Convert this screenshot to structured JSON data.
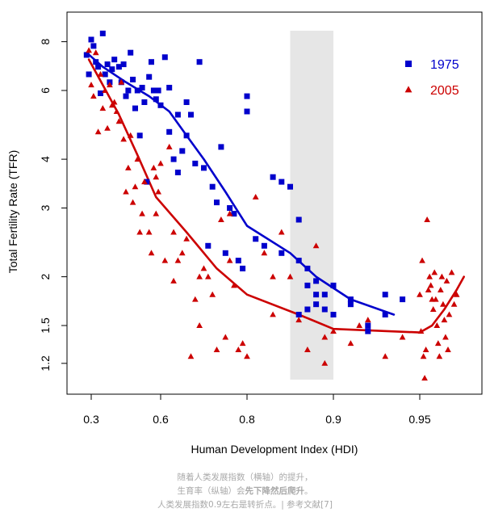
{
  "chart_data": {
    "type": "scatter",
    "xlabel": "Human Development Index (HDI)",
    "ylabel": "Total Fertility Rate (TFR)",
    "x_ticks": [
      {
        "value": 0.3,
        "label": "0.3"
      },
      {
        "value": 0.6,
        "label": "0.6"
      },
      {
        "value": 0.8,
        "label": "0.8"
      },
      {
        "value": 0.9,
        "label": "0.9"
      },
      {
        "value": 0.95,
        "label": "0.95"
      }
    ],
    "y_ticks": [
      {
        "value": 1.2,
        "label": "1.2"
      },
      {
        "value": 1.5,
        "label": "1.5"
      },
      {
        "value": 2,
        "label": "2"
      },
      {
        "value": 3,
        "label": "3"
      },
      {
        "value": 4,
        "label": "4"
      },
      {
        "value": 6,
        "label": "6"
      },
      {
        "value": 8,
        "label": "8"
      }
    ],
    "ylog": true,
    "ylim": [
      1.0,
      8.6
    ],
    "shaded_region": {
      "x0": 0.85,
      "x1": 0.9
    },
    "legend_position": "top-right",
    "series": [
      {
        "name": "1975",
        "marker": "square",
        "color": "#0000cc",
        "points": [
          [
            0.28,
            7.4
          ],
          [
            0.29,
            6.6
          ],
          [
            0.3,
            8.1
          ],
          [
            0.31,
            7.8
          ],
          [
            0.32,
            7.1
          ],
          [
            0.33,
            6.9
          ],
          [
            0.34,
            5.9
          ],
          [
            0.35,
            8.4
          ],
          [
            0.36,
            6.6
          ],
          [
            0.37,
            7.0
          ],
          [
            0.38,
            6.3
          ],
          [
            0.39,
            6.8
          ],
          [
            0.4,
            7.2
          ],
          [
            0.42,
            6.9
          ],
          [
            0.43,
            6.3
          ],
          [
            0.44,
            7.0
          ],
          [
            0.45,
            5.8
          ],
          [
            0.46,
            6.0
          ],
          [
            0.47,
            7.5
          ],
          [
            0.48,
            6.4
          ],
          [
            0.49,
            5.4
          ],
          [
            0.5,
            6.0
          ],
          [
            0.51,
            4.6
          ],
          [
            0.52,
            6.1
          ],
          [
            0.53,
            5.6
          ],
          [
            0.54,
            3.5
          ],
          [
            0.55,
            6.5
          ],
          [
            0.56,
            7.1
          ],
          [
            0.57,
            6.0
          ],
          [
            0.58,
            5.7
          ],
          [
            0.59,
            6.0
          ],
          [
            0.6,
            5.5
          ],
          [
            0.61,
            7.3
          ],
          [
            0.62,
            4.7
          ],
          [
            0.62,
            6.1
          ],
          [
            0.63,
            4.0
          ],
          [
            0.64,
            3.7
          ],
          [
            0.64,
            5.2
          ],
          [
            0.65,
            4.2
          ],
          [
            0.66,
            5.6
          ],
          [
            0.66,
            4.6
          ],
          [
            0.67,
            5.2
          ],
          [
            0.68,
            3.9
          ],
          [
            0.69,
            7.1
          ],
          [
            0.7,
            3.8
          ],
          [
            0.71,
            2.4
          ],
          [
            0.72,
            3.4
          ],
          [
            0.73,
            3.1
          ],
          [
            0.74,
            4.3
          ],
          [
            0.75,
            2.3
          ],
          [
            0.76,
            3.0
          ],
          [
            0.77,
            2.9
          ],
          [
            0.78,
            2.2
          ],
          [
            0.79,
            2.1
          ],
          [
            0.8,
            5.3
          ],
          [
            0.8,
            5.8
          ],
          [
            0.81,
            2.5
          ],
          [
            0.82,
            2.4
          ],
          [
            0.83,
            3.6
          ],
          [
            0.84,
            2.3
          ],
          [
            0.84,
            3.5
          ],
          [
            0.85,
            3.4
          ],
          [
            0.86,
            2.8
          ],
          [
            0.86,
            2.2
          ],
          [
            0.87,
            2.1
          ],
          [
            0.87,
            1.9
          ],
          [
            0.88,
            1.8
          ],
          [
            0.88,
            1.7
          ],
          [
            0.89,
            1.65
          ],
          [
            0.89,
            1.8
          ],
          [
            0.9,
            1.6
          ],
          [
            0.9,
            1.9
          ],
          [
            0.91,
            1.7
          ],
          [
            0.91,
            1.75
          ],
          [
            0.92,
            1.5
          ],
          [
            0.92,
            1.45
          ],
          [
            0.93,
            1.6
          ],
          [
            0.93,
            1.8
          ],
          [
            0.94,
            1.75
          ],
          [
            0.86,
            1.6
          ],
          [
            0.87,
            1.65
          ],
          [
            0.88,
            1.95
          ]
        ],
        "trend": [
          [
            0.28,
            7.5
          ],
          [
            0.35,
            6.9
          ],
          [
            0.45,
            6.3
          ],
          [
            0.55,
            5.8
          ],
          [
            0.62,
            5.3
          ],
          [
            0.66,
            4.6
          ],
          [
            0.7,
            4.0
          ],
          [
            0.75,
            3.3
          ],
          [
            0.8,
            2.7
          ],
          [
            0.85,
            2.3
          ],
          [
            0.88,
            2.0
          ],
          [
            0.91,
            1.75
          ],
          [
            0.935,
            1.6
          ]
        ]
      },
      {
        "name": "2005",
        "marker": "triangle",
        "color": "#cc0000",
        "points": [
          [
            0.29,
            7.6
          ],
          [
            0.3,
            6.2
          ],
          [
            0.31,
            5.8
          ],
          [
            0.32,
            7.5
          ],
          [
            0.33,
            4.7
          ],
          [
            0.34,
            6.6
          ],
          [
            0.35,
            5.4
          ],
          [
            0.36,
            6.0
          ],
          [
            0.37,
            4.8
          ],
          [
            0.38,
            6.2
          ],
          [
            0.39,
            5.5
          ],
          [
            0.4,
            5.6
          ],
          [
            0.41,
            5.3
          ],
          [
            0.42,
            5.0
          ],
          [
            0.43,
            6.3
          ],
          [
            0.44,
            4.5
          ],
          [
            0.45,
            3.3
          ],
          [
            0.46,
            3.8
          ],
          [
            0.47,
            4.6
          ],
          [
            0.48,
            3.1
          ],
          [
            0.49,
            3.4
          ],
          [
            0.5,
            4.0
          ],
          [
            0.51,
            2.6
          ],
          [
            0.52,
            2.9
          ],
          [
            0.53,
            3.5
          ],
          [
            0.55,
            2.6
          ],
          [
            0.56,
            2.3
          ],
          [
            0.57,
            3.8
          ],
          [
            0.58,
            2.9
          ],
          [
            0.59,
            3.3
          ],
          [
            0.6,
            3.9
          ],
          [
            0.61,
            2.2
          ],
          [
            0.62,
            4.3
          ],
          [
            0.63,
            2.6
          ],
          [
            0.64,
            2.2
          ],
          [
            0.65,
            2.3
          ],
          [
            0.66,
            2.5
          ],
          [
            0.67,
            1.25
          ],
          [
            0.68,
            1.75
          ],
          [
            0.69,
            1.5
          ],
          [
            0.7,
            2.1
          ],
          [
            0.71,
            2.0
          ],
          [
            0.72,
            1.8
          ],
          [
            0.73,
            1.3
          ],
          [
            0.74,
            2.8
          ],
          [
            0.75,
            1.4
          ],
          [
            0.76,
            2.2
          ],
          [
            0.77,
            1.9
          ],
          [
            0.78,
            1.3
          ],
          [
            0.79,
            1.35
          ],
          [
            0.8,
            1.25
          ],
          [
            0.81,
            3.2
          ],
          [
            0.82,
            2.3
          ],
          [
            0.83,
            1.6
          ],
          [
            0.84,
            2.6
          ],
          [
            0.85,
            2.0
          ],
          [
            0.86,
            1.55
          ],
          [
            0.87,
            1.3
          ],
          [
            0.88,
            2.4
          ],
          [
            0.89,
            1.2
          ],
          [
            0.9,
            1.45
          ],
          [
            0.91,
            1.35
          ],
          [
            0.92,
            1.55
          ],
          [
            0.93,
            1.25
          ],
          [
            0.94,
            1.4
          ],
          [
            0.95,
            1.8
          ],
          [
            0.955,
            1.45
          ],
          [
            0.96,
            2.2
          ],
          [
            0.965,
            1.25
          ],
          [
            0.97,
            1.1
          ],
          [
            0.975,
            1.3
          ],
          [
            0.98,
            2.8
          ],
          [
            0.985,
            1.85
          ],
          [
            0.99,
            2.0
          ],
          [
            0.995,
            1.9
          ],
          [
            1.0,
            1.75
          ],
          [
            1.005,
            1.65
          ],
          [
            1.01,
            2.05
          ],
          [
            1.015,
            1.75
          ],
          [
            1.02,
            1.5
          ],
          [
            1.025,
            1.35
          ],
          [
            1.03,
            1.25
          ],
          [
            1.035,
            1.85
          ],
          [
            1.04,
            2.0
          ],
          [
            1.045,
            1.7
          ],
          [
            1.05,
            1.55
          ],
          [
            1.055,
            1.4
          ],
          [
            1.06,
            1.95
          ],
          [
            1.065,
            1.3
          ],
          [
            1.07,
            1.6
          ],
          [
            1.08,
            2.05
          ],
          [
            1.09,
            1.7
          ],
          [
            1.1,
            1.8
          ],
          [
            0.58,
            3.6
          ],
          [
            0.63,
            1.95
          ],
          [
            0.69,
            2.0
          ],
          [
            0.76,
            2.9
          ],
          [
            0.83,
            2.0
          ],
          [
            0.89,
            1.4
          ],
          [
            0.915,
            1.5
          ]
        ],
        "trend": [
          [
            0.29,
            7.2
          ],
          [
            0.35,
            6.2
          ],
          [
            0.42,
            5.2
          ],
          [
            0.5,
            4.1
          ],
          [
            0.58,
            3.2
          ],
          [
            0.66,
            2.6
          ],
          [
            0.73,
            2.1
          ],
          [
            0.8,
            1.8
          ],
          [
            0.86,
            1.6
          ],
          [
            0.9,
            1.47
          ],
          [
            0.95,
            1.44
          ],
          [
            1.0,
            1.5
          ],
          [
            1.05,
            1.65
          ],
          [
            1.1,
            1.85
          ],
          [
            1.13,
            2.0
          ]
        ]
      }
    ]
  },
  "caption": {
    "line1": "随着人类发展指数（横轴）的提升，",
    "line2_prefix": "生育率（纵轴）会",
    "line2_bold": "先下降然后爬升",
    "line2_suffix": "。",
    "line3": "人类发展指数0.9左右是转折点。| 参考文献[7]"
  }
}
